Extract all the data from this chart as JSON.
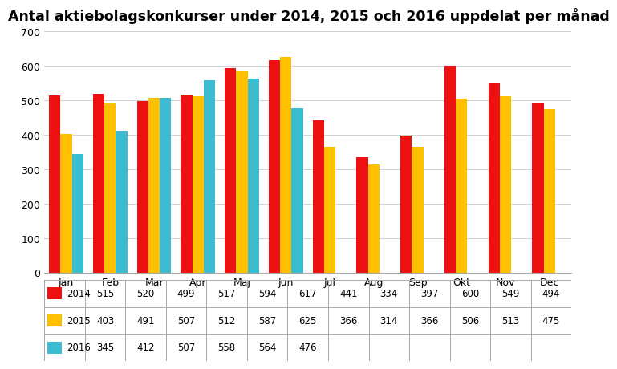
{
  "title": "Antal aktiebolagskonkurser under 2014, 2015 och 2016 uppdelat per månad",
  "months": [
    "Jan",
    "Feb",
    "Mar",
    "Apr",
    "Maj",
    "Jun",
    "Jul",
    "Aug",
    "Sep",
    "Okt",
    "Nov",
    "Dec"
  ],
  "series": {
    "2014": [
      515,
      520,
      499,
      517,
      594,
      617,
      441,
      334,
      397,
      600,
      549,
      494
    ],
    "2015": [
      403,
      491,
      507,
      512,
      587,
      625,
      366,
      314,
      366,
      506,
      513,
      475
    ],
    "2016": [
      345,
      412,
      507,
      558,
      564,
      476,
      null,
      null,
      null,
      null,
      null,
      null
    ]
  },
  "colors": {
    "2014": "#EE1111",
    "2015": "#FFC000",
    "2016": "#3BBCD0"
  },
  "ylim": [
    0,
    700
  ],
  "yticks": [
    0,
    100,
    200,
    300,
    400,
    500,
    600,
    700
  ],
  "bar_width": 0.26,
  "background_color": "#FFFFFF",
  "title_fontsize": 12.5,
  "tick_fontsize": 9,
  "table_fontsize": 8.5,
  "grid_color": "#D0D0D0"
}
